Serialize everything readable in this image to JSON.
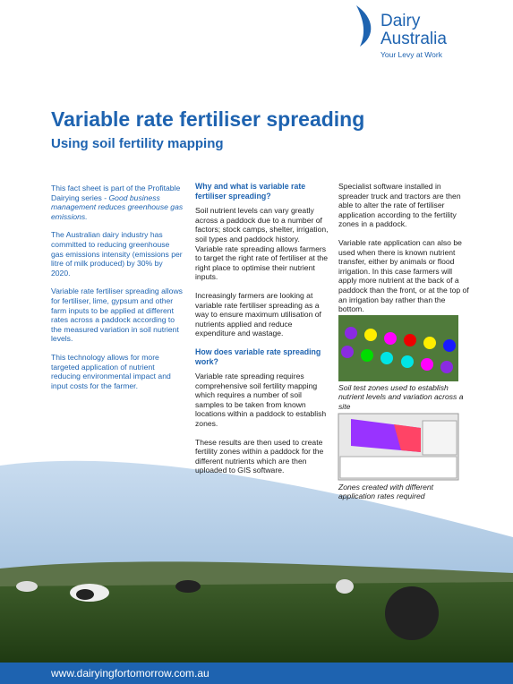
{
  "header": {
    "logo": {
      "line1": "Dairy",
      "line2": "Australia",
      "tagline": "Your Levy at Work"
    },
    "title": "Variable rate fertiliser spreading",
    "subtitle": "Using soil fertility mapping"
  },
  "column1": {
    "paragraphs": [
      {
        "text": "This fact sheet is part of the Profitable Dairying series - ",
        "emphasis": "Good business management reduces greenhouse gas emissions."
      },
      {
        "text": "The Australian dairy industry has committed to reducing greenhouse gas emissions intensity (emissions per litre of milk produced) by 30% by 2020."
      },
      {
        "text": "Variable rate fertiliser spreading allows for fertiliser, lime, gypsum and other farm inputs to be applied at different rates across a paddock according to the measured variation in soil nutrient levels."
      },
      {
        "text": "This technology allows for more targeted application of nutrient reducing environmental impact and input costs for the farmer."
      }
    ]
  },
  "column2": {
    "sections": [
      {
        "heading": "Why and what is variable rate fertiliser spreading?",
        "paragraphs": [
          "Soil nutrient levels can vary greatly across a paddock due to a number of factors; stock camps, shelter, irrigation, soil types and paddock history. Variable rate spreading allows farmers to target the right rate of fertiliser at the right place to optimise their nutrient inputs.",
          "Increasingly farmers are looking at variable rate fertiliser spreading as a way to ensure maximum utilisation of nutrients applied and reduce expenditure and wastage."
        ]
      },
      {
        "heading": "How does variable rate spreading work?",
        "paragraphs": [
          "Variable rate spreading requires comprehensive soil fertility mapping which requires a number of soil samples to be taken from known locations within a paddock to establish zones.",
          "These results are then used to create fertility zones within a paddock for the different nutrients which are then uploaded to GIS software."
        ]
      }
    ]
  },
  "column3": {
    "paragraphs": [
      "Specialist software installed in spreader truck and tractors are then able to alter the rate of fertiliser application according to the fertility zones in a paddock.",
      "Variable rate application can also be used when there is known nutrient transfer, either by animals or flood irrigation. In this case farmers will apply more nutrient at the back of a paddock than the front, or at the top of an irrigation bay rather than the bottom."
    ],
    "captions": [
      "Soil test zones used to establish nutrient levels and variation across a site",
      "Zones created with different application rates required"
    ]
  },
  "footer": {
    "url": "www.dairyingfortomorrow.com.au"
  }
}
